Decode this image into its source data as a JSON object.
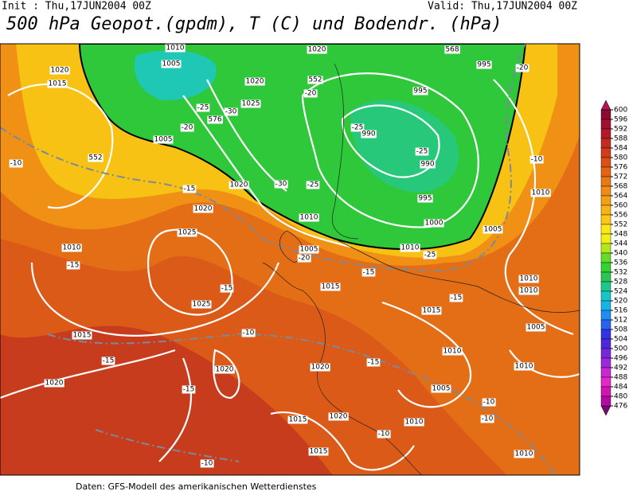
{
  "header": {
    "init": "Init : Thu,17JUN2004 00Z",
    "valid": "Valid: Thu,17JUN2004 00Z",
    "title": "500 hPa Geopot.(gpdm), T (C) und Bodendr. (hPa)"
  },
  "colorbar": {
    "ticks": [
      600,
      596,
      592,
      588,
      584,
      580,
      576,
      572,
      568,
      564,
      560,
      556,
      552,
      548,
      544,
      540,
      536,
      532,
      528,
      524,
      520,
      516,
      512,
      508,
      504,
      500,
      496,
      492,
      488,
      484,
      480,
      476
    ],
    "colors": [
      "#8b0a32",
      "#a01030",
      "#b4182a",
      "#c42a20",
      "#d23c18",
      "#dc5014",
      "#e46414",
      "#ea7814",
      "#f08c14",
      "#f4a014",
      "#f8b414",
      "#fcc814",
      "#fce614",
      "#f0f014",
      "#b4e61e",
      "#64dc28",
      "#32d232",
      "#28c850",
      "#1ec88c",
      "#14c8c8",
      "#14b4e6",
      "#1e8cf0",
      "#2864f0",
      "#3232e6",
      "#5028dc",
      "#7828dc",
      "#a028dc",
      "#c828d2",
      "#e628c8",
      "#d214b4",
      "#b40aa0"
    ]
  },
  "map_labels": [
    "1010",
    "1005",
    "1020",
    "1015",
    "1020",
    "1025",
    "-25",
    "-30",
    "-20",
    "1005",
    "-10",
    "552",
    "-15",
    "1020",
    "-30",
    "-25",
    "1020",
    "1025",
    "1010",
    "-15",
    "1010",
    "1005",
    "-20",
    "1015",
    "-15",
    "1025",
    "-10",
    "1015",
    "-15",
    "1020",
    "1020",
    "1020",
    "-15",
    "1015",
    "1020",
    "1015",
    "-10",
    "1020",
    "995",
    "995",
    "-20",
    "-25",
    "990",
    "-25",
    "990",
    "995",
    "1000",
    "1010",
    "-25",
    "1005",
    "-20",
    "-10",
    "1010",
    "1010",
    "1010",
    "-15",
    "-15",
    "1015",
    "1005",
    "1010",
    "-15",
    "1010",
    "1005",
    "-10",
    "-10",
    "1010",
    "-10",
    "1010",
    "568",
    "552",
    "576"
  ],
  "footer": "Daten: GFS-Modell des amerikanischen Wetterdienstes"
}
